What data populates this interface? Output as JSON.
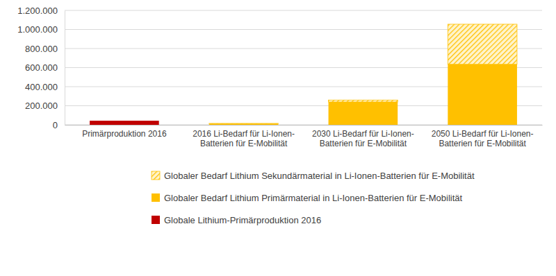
{
  "chart_data": {
    "type": "bar",
    "stacked": true,
    "grid": true,
    "legend": "bottom",
    "categories": [
      "Primärproduktion 2016",
      "2016 Li-Bedarf für Li-Ionen-Batterien für E-Mobilität",
      "2030 Li-Bedarf für Li-Ionen-Batterien für E-Mobilität",
      "2050 Li-Bedarf für Li-Ionen-Batterien für E-Mobilität"
    ],
    "series": [
      {
        "name": "Globale Lithium-Primärproduktion 2016",
        "color": "#c00000",
        "values": [
          43000,
          null,
          null,
          null
        ]
      },
      {
        "name": "Globaler Bedarf Lithium Primärmaterial in Li-Ionen-Batterien für E-Mobilität",
        "color": "#ffc000",
        "values": [
          null,
          12000,
          240000,
          635000
        ]
      },
      {
        "name": "Globaler Bedarf Lithium Sekundärmaterial in Li-Ionen-Batterien für E-Mobilität",
        "color": "#ffc000",
        "line_style": "hatched",
        "values": [
          null,
          3000,
          20000,
          420000
        ]
      }
    ],
    "ylim": [
      0,
      1200000
    ],
    "yticks": [
      0,
      {
        "value": 200000,
        "label": "200.000"
      },
      {
        "value": 400000,
        "label": "400.000"
      },
      {
        "value": 600000,
        "label": "600.000"
      },
      {
        "value": 800000,
        "label": "800.000"
      },
      {
        "value": 1000000,
        "label": "1.000.000"
      },
      {
        "value": 1200000,
        "label": "1.200.000"
      }
    ]
  }
}
